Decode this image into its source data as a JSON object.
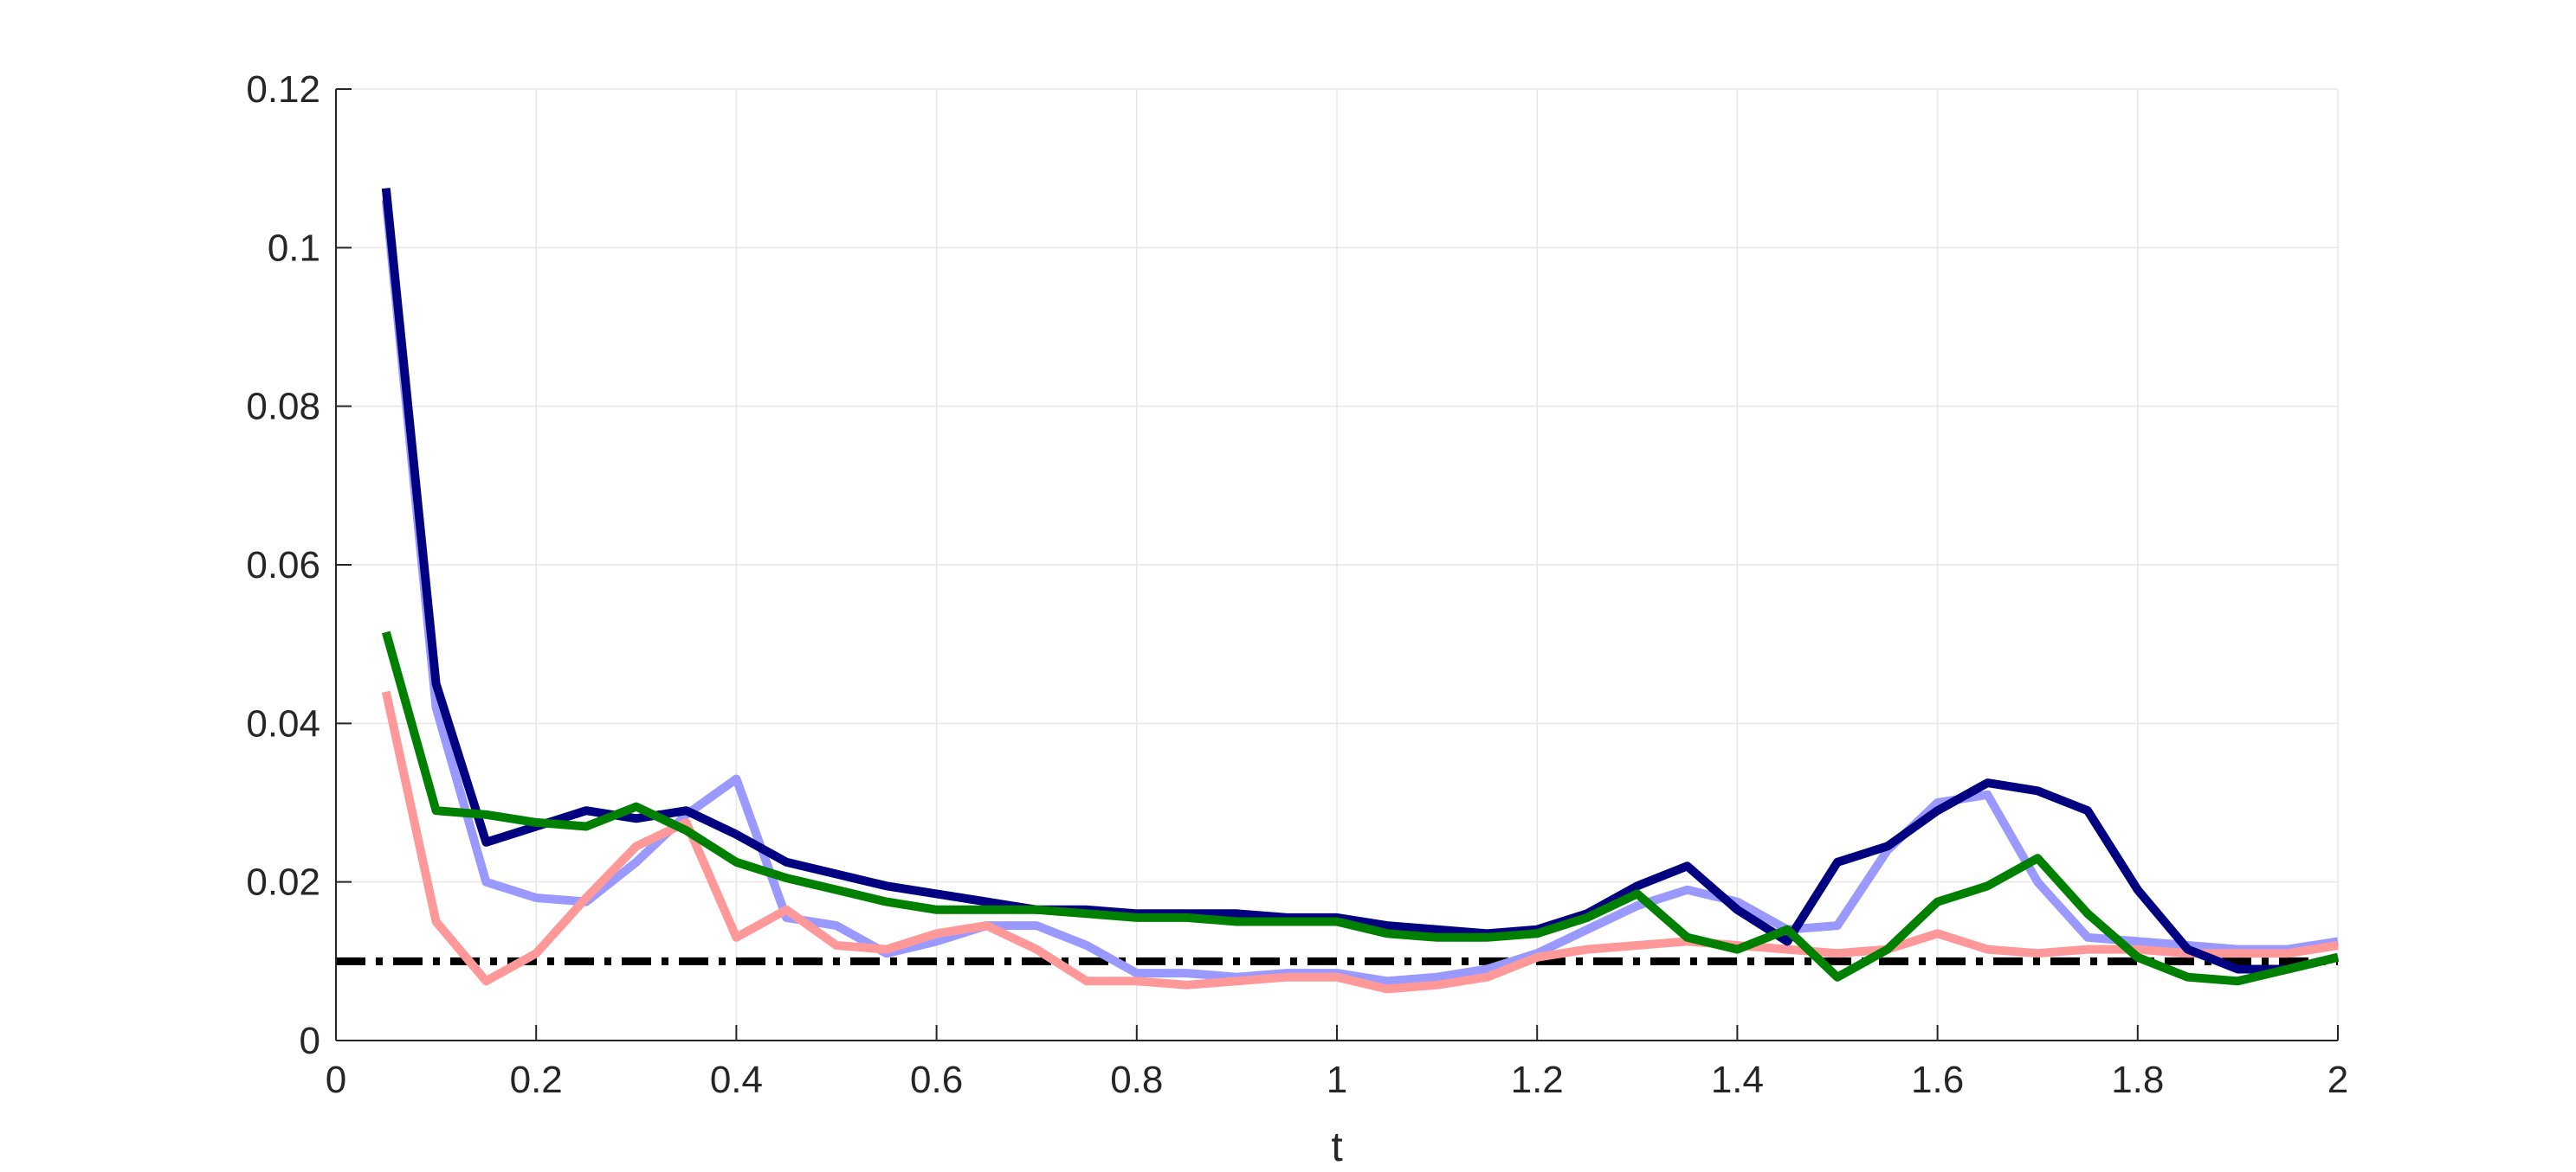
{
  "chart_data": {
    "type": "line",
    "title": "",
    "xlabel": "t",
    "ylabel": "",
    "xlim": [
      0,
      2
    ],
    "ylim": [
      0,
      0.12
    ],
    "xticks": [
      0,
      0.2,
      0.4,
      0.6,
      0.8,
      1,
      1.2,
      1.4,
      1.6,
      1.8,
      2
    ],
    "xtick_labels": [
      "0",
      "0.2",
      "0.4",
      "0.6",
      "0.8",
      "1",
      "1.2",
      "1.4",
      "1.6",
      "1.8",
      "2"
    ],
    "yticks": [
      0,
      0.02,
      0.04,
      0.06,
      0.08,
      0.1,
      0.12
    ],
    "ytick_labels": [
      "0",
      "0.02",
      "0.04",
      "0.06",
      "0.08",
      "0.1",
      "0.12"
    ],
    "grid": true,
    "legend": "none",
    "x": [
      0.05,
      0.1,
      0.15,
      0.2,
      0.25,
      0.3,
      0.35,
      0.4,
      0.45,
      0.5,
      0.55,
      0.6,
      0.65,
      0.7,
      0.75,
      0.8,
      0.85,
      0.9,
      0.95,
      1.0,
      1.05,
      1.1,
      1.15,
      1.2,
      1.25,
      1.3,
      1.35,
      1.4,
      1.45,
      1.5,
      1.55,
      1.6,
      1.65,
      1.7,
      1.75,
      1.8,
      1.85,
      1.9,
      1.95,
      2.0
    ],
    "series": [
      {
        "color": "#9999ff",
        "values": [
          0.106,
          0.042,
          0.02,
          0.018,
          0.0175,
          0.0225,
          0.0285,
          0.033,
          0.0155,
          0.0145,
          0.011,
          0.0125,
          0.0145,
          0.0145,
          0.012,
          0.0085,
          0.0085,
          0.008,
          0.0085,
          0.0085,
          0.0075,
          0.008,
          0.009,
          0.011,
          0.014,
          0.017,
          0.019,
          0.0175,
          0.014,
          0.0145,
          0.024,
          0.03,
          0.031,
          0.02,
          0.013,
          0.0125,
          0.012,
          0.0115,
          0.0115,
          0.0125
        ]
      },
      {
        "color": "#ff9999",
        "values": [
          0.044,
          0.015,
          0.0075,
          0.011,
          0.018,
          0.0245,
          0.0275,
          0.013,
          0.0165,
          0.012,
          0.0115,
          0.0135,
          0.0145,
          0.0115,
          0.0075,
          0.0075,
          0.007,
          0.0075,
          0.008,
          0.008,
          0.0065,
          0.007,
          0.008,
          0.0105,
          0.0115,
          0.012,
          0.0125,
          0.012,
          0.0115,
          0.011,
          0.0115,
          0.0135,
          0.0115,
          0.011,
          0.0115,
          0.0115,
          0.011,
          0.011,
          0.011,
          0.012
        ]
      },
      {
        "color": "#000080",
        "values": [
          0.1075,
          0.045,
          0.025,
          0.027,
          0.029,
          0.028,
          0.029,
          0.026,
          0.0225,
          0.021,
          0.0195,
          0.0185,
          0.0175,
          0.0165,
          0.0165,
          0.016,
          0.016,
          0.016,
          0.0155,
          0.0155,
          0.0145,
          0.014,
          0.0135,
          0.014,
          0.016,
          0.0195,
          0.022,
          0.0165,
          0.0125,
          0.0225,
          0.0245,
          0.029,
          0.0325,
          0.0315,
          0.029,
          0.019,
          0.0115,
          0.009,
          0.009,
          0.0105
        ]
      },
      {
        "color": "#008000",
        "values": [
          0.0515,
          0.029,
          0.0285,
          0.0275,
          0.027,
          0.0295,
          0.0265,
          0.0225,
          0.0205,
          0.019,
          0.0175,
          0.0165,
          0.0165,
          0.0165,
          0.016,
          0.0155,
          0.0155,
          0.015,
          0.015,
          0.015,
          0.0135,
          0.013,
          0.013,
          0.0135,
          0.0155,
          0.0185,
          0.013,
          0.0115,
          0.014,
          0.008,
          0.0115,
          0.0175,
          0.0195,
          0.023,
          0.016,
          0.0105,
          0.008,
          0.0075,
          0.009,
          0.0105
        ]
      }
    ],
    "reference_line": {
      "y": 0.01,
      "color": "#000000",
      "style": "dash-dot"
    }
  }
}
